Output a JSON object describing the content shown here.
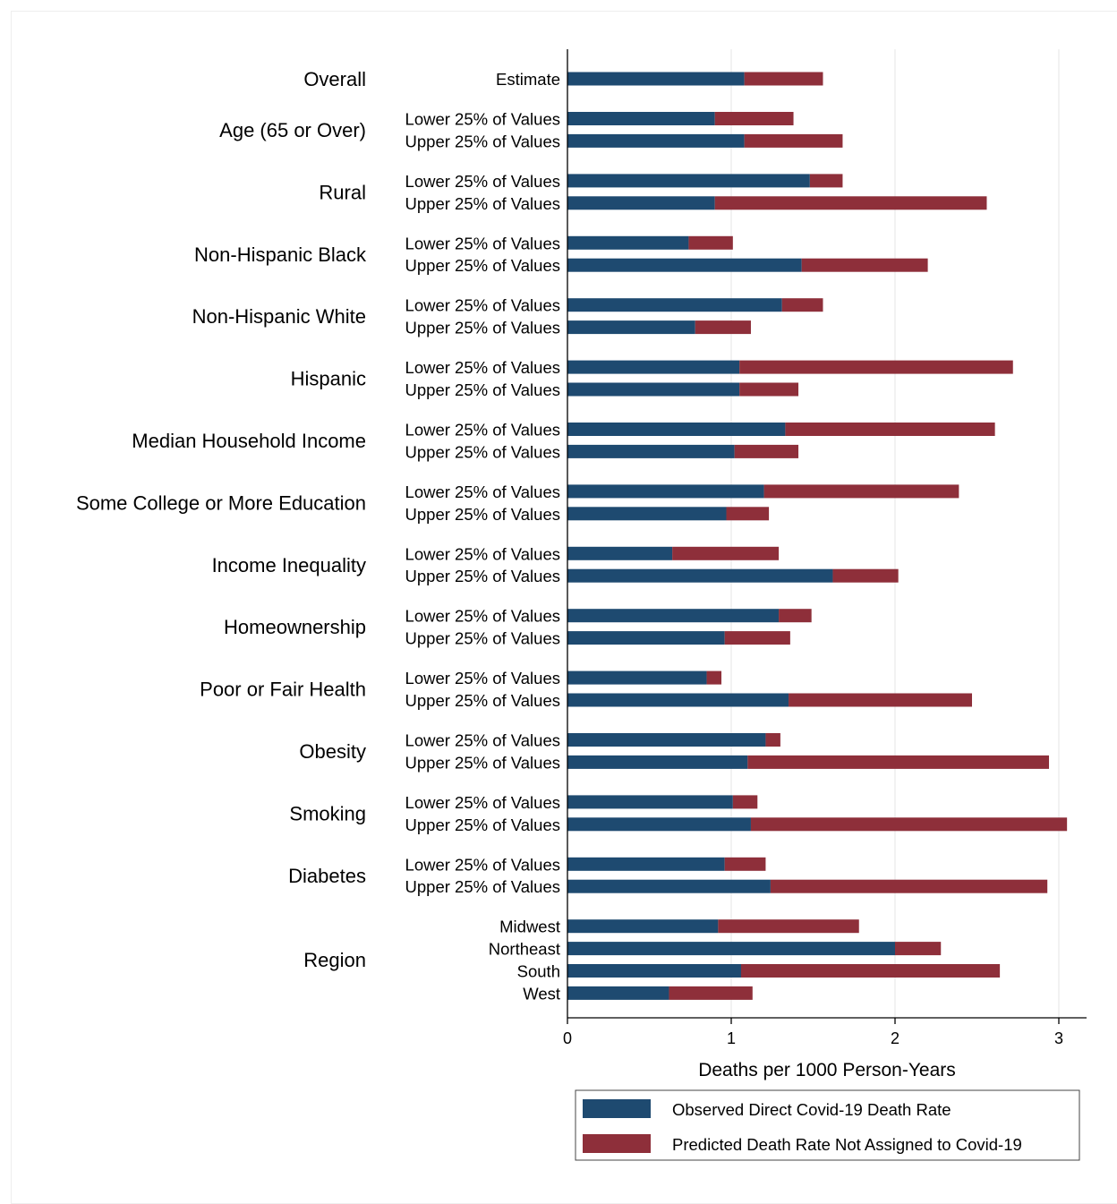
{
  "chart_data": {
    "type": "bar",
    "stacked": true,
    "orientation": "horizontal",
    "xlabel": "Deaths per 1000 Person-Years",
    "xlim": [
      0,
      3.17
    ],
    "xticks": [
      0,
      1,
      2,
      3
    ],
    "grid": true,
    "legend_position": "bottom",
    "series": [
      {
        "name": "Observed Direct Covid-19 Death Rate",
        "color": "#1e4a70"
      },
      {
        "name": "Predicted Death Rate Not Assigned to Covid-19",
        "color": "#8e2f3a"
      }
    ],
    "groups": [
      {
        "name": "Overall",
        "bars": [
          {
            "label": "Estimate",
            "observed": 1.08,
            "predicted": 0.48
          }
        ]
      },
      {
        "name": "Age (65 or Over)",
        "bars": [
          {
            "label": "Lower 25% of Values",
            "observed": 0.9,
            "predicted": 0.48
          },
          {
            "label": "Upper 25% of Values",
            "observed": 1.08,
            "predicted": 0.6
          }
        ]
      },
      {
        "name": "Rural",
        "bars": [
          {
            "label": "Lower 25% of Values",
            "observed": 1.48,
            "predicted": 0.2
          },
          {
            "label": "Upper 25% of Values",
            "observed": 0.9,
            "predicted": 1.66
          }
        ]
      },
      {
        "name": "Non-Hispanic Black",
        "bars": [
          {
            "label": "Lower 25% of Values",
            "observed": 0.74,
            "predicted": 0.27
          },
          {
            "label": "Upper 25% of Values",
            "observed": 1.43,
            "predicted": 0.77
          }
        ]
      },
      {
        "name": "Non-Hispanic White",
        "bars": [
          {
            "label": "Lower 25% of Values",
            "observed": 1.31,
            "predicted": 0.25
          },
          {
            "label": "Upper 25% of Values",
            "observed": 0.78,
            "predicted": 0.34
          }
        ]
      },
      {
        "name": "Hispanic",
        "bars": [
          {
            "label": "Lower 25% of Values",
            "observed": 1.05,
            "predicted": 1.67
          },
          {
            "label": "Upper 25% of Values",
            "observed": 1.05,
            "predicted": 0.36
          }
        ]
      },
      {
        "name": "Median Household Income",
        "bars": [
          {
            "label": "Lower 25% of Values",
            "observed": 1.33,
            "predicted": 1.28
          },
          {
            "label": "Upper 25% of Values",
            "observed": 1.02,
            "predicted": 0.39
          }
        ]
      },
      {
        "name": "Some College or More Education",
        "bars": [
          {
            "label": "Lower 25% of Values",
            "observed": 1.2,
            "predicted": 1.19
          },
          {
            "label": "Upper 25% of Values",
            "observed": 0.97,
            "predicted": 0.26
          }
        ]
      },
      {
        "name": "Income Inequality",
        "bars": [
          {
            "label": "Lower 25% of Values",
            "observed": 0.64,
            "predicted": 0.65
          },
          {
            "label": "Upper 25% of Values",
            "observed": 1.62,
            "predicted": 0.4
          }
        ]
      },
      {
        "name": "Homeownership",
        "bars": [
          {
            "label": "Lower 25% of Values",
            "observed": 1.29,
            "predicted": 0.2
          },
          {
            "label": "Upper 25% of Values",
            "observed": 0.96,
            "predicted": 0.4
          }
        ]
      },
      {
        "name": "Poor or Fair Health",
        "bars": [
          {
            "label": "Lower 25% of Values",
            "observed": 0.85,
            "predicted": 0.09
          },
          {
            "label": "Upper 25% of Values",
            "observed": 1.35,
            "predicted": 1.12
          }
        ]
      },
      {
        "name": "Obesity",
        "bars": [
          {
            "label": "Lower 25% of Values",
            "observed": 1.21,
            "predicted": 0.09
          },
          {
            "label": "Upper 25% of Values",
            "observed": 1.1,
            "predicted": 1.84
          }
        ]
      },
      {
        "name": "Smoking",
        "bars": [
          {
            "label": "Lower 25% of Values",
            "observed": 1.01,
            "predicted": 0.15
          },
          {
            "label": "Upper 25% of Values",
            "observed": 1.12,
            "predicted": 1.93
          }
        ]
      },
      {
        "name": "Diabetes",
        "bars": [
          {
            "label": "Lower 25% of Values",
            "observed": 0.96,
            "predicted": 0.25
          },
          {
            "label": "Upper 25% of Values",
            "observed": 1.24,
            "predicted": 1.69
          }
        ]
      },
      {
        "name": "Region",
        "bars": [
          {
            "label": "Midwest",
            "observed": 0.92,
            "predicted": 0.86
          },
          {
            "label": "Northeast",
            "observed": 2.0,
            "predicted": 0.28
          },
          {
            "label": "South",
            "observed": 1.06,
            "predicted": 1.58
          },
          {
            "label": "West",
            "observed": 0.62,
            "predicted": 0.51
          }
        ]
      }
    ]
  }
}
